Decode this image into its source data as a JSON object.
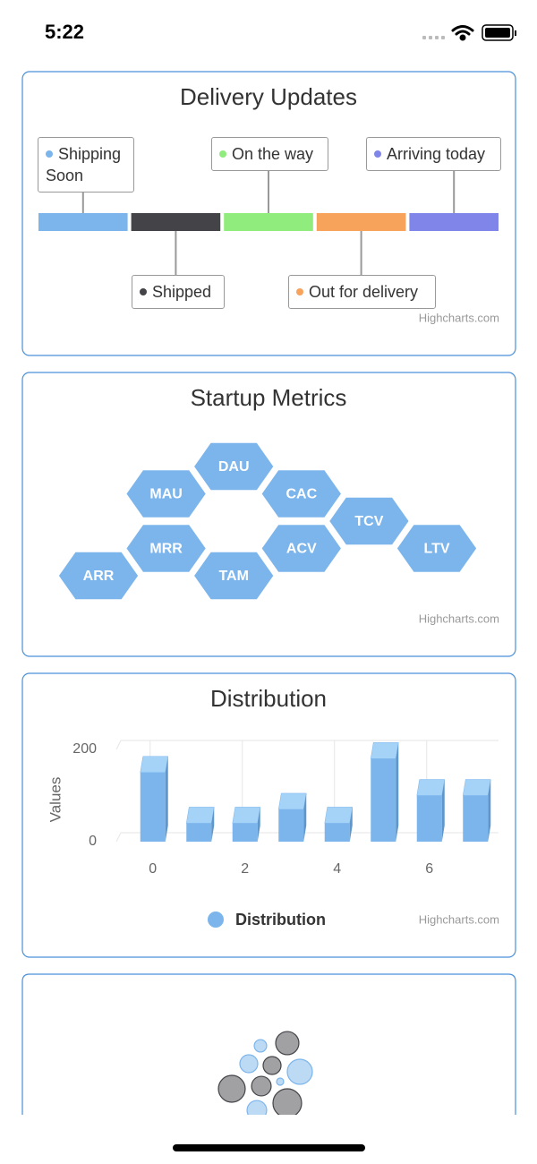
{
  "status_bar": {
    "time": "5:22"
  },
  "chart_data": [
    {
      "type": "timeline",
      "title": "Delivery Updates",
      "credits": "Highcharts.com",
      "events": [
        {
          "name": "Shipping Soon",
          "color": "#7cb5ec"
        },
        {
          "name": "Shipped",
          "color": "#434348"
        },
        {
          "name": "On the way",
          "color": "#90ed7d"
        },
        {
          "name": "Out for delivery",
          "color": "#f7a35c"
        },
        {
          "name": "Arriving today",
          "color": "#8085e9"
        }
      ]
    },
    {
      "type": "tilemap",
      "title": "Startup Metrics",
      "credits": "Highcharts.com",
      "color": "#7cb5ec",
      "tiles": [
        {
          "name": "DAU",
          "x": 2,
          "y": 0
        },
        {
          "name": "MAU",
          "x": 1,
          "y": 1
        },
        {
          "name": "CAC",
          "x": 3,
          "y": 1
        },
        {
          "name": "TCV",
          "x": 4,
          "y": 2
        },
        {
          "name": "MRR",
          "x": 1,
          "y": 3
        },
        {
          "name": "ACV",
          "x": 3,
          "y": 3
        },
        {
          "name": "LTV",
          "x": 5,
          "y": 3
        },
        {
          "name": "ARR",
          "x": 0,
          "y": 4
        },
        {
          "name": "TAM",
          "x": 2,
          "y": 4
        }
      ]
    },
    {
      "type": "column3d",
      "title": "Distribution",
      "y_axis_label": "Values",
      "credits": "Highcharts.com",
      "x": [
        0,
        1,
        2,
        3,
        4,
        5,
        6,
        7
      ],
      "xlim": [
        -0.5,
        7.5
      ],
      "xticks": [
        0,
        2,
        4,
        6
      ],
      "ylim": [
        0,
        200
      ],
      "yticks": [
        0,
        200
      ],
      "grid": true,
      "series": [
        {
          "name": "Distribution",
          "color": "#7cb5ec",
          "values": [
            150,
            40,
            40,
            70,
            40,
            180,
            100,
            100
          ]
        }
      ]
    },
    {
      "type": "packedbubble",
      "series": [
        {
          "color": "#7cb5ec",
          "values": [
            12,
            25,
            49,
            4,
            30
          ]
        },
        {
          "color": "#434348",
          "values": [
            42,
            25,
            56,
            30,
            64
          ]
        }
      ]
    }
  ]
}
